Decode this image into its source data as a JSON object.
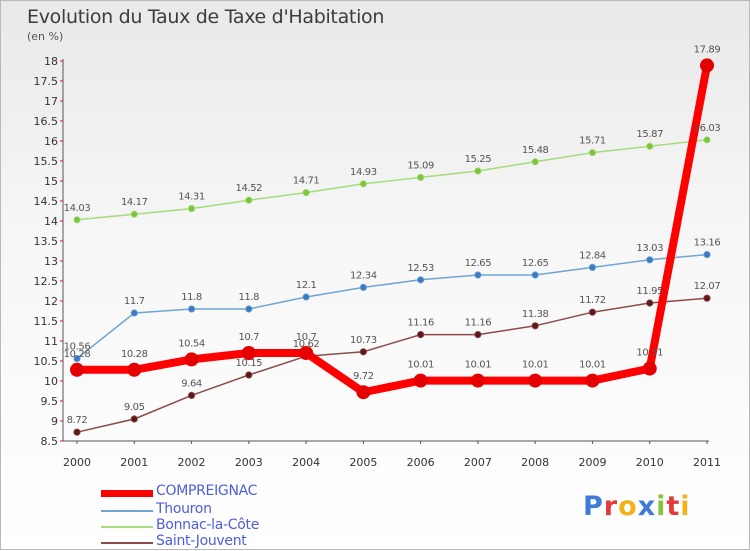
{
  "header": {
    "title": "Evolution du Taux de Taxe d'Habitation",
    "subtitle": "(en %)"
  },
  "logo": {
    "text": "Proxiti"
  },
  "chart_data": {
    "type": "line",
    "title": "Evolution du Taux de Taxe d'Habitation",
    "ylabel": "(en %)",
    "xlabel": "",
    "x": [
      "2000",
      "2001",
      "2002",
      "2003",
      "2004",
      "2005",
      "2006",
      "2007",
      "2008",
      "2009",
      "2010",
      "2011"
    ],
    "ylim": [
      8.5,
      18
    ],
    "yticks": [
      "8.5",
      "9",
      "9.5",
      "10",
      "10.5",
      "11",
      "11.5",
      "12",
      "12.5",
      "13",
      "13.5",
      "14",
      "14.5",
      "15",
      "15.5",
      "16",
      "16.5",
      "17",
      "17.5",
      "18"
    ],
    "grid": false,
    "legend_position": "bottom-left",
    "series": [
      {
        "name": "COMPREIGNAC",
        "color": "#ff0000",
        "point_color": "#e40000",
        "width": 8,
        "radius": 7,
        "values": [
          10.28,
          10.28,
          10.54,
          10.7,
          10.7,
          9.72,
          10.01,
          10.01,
          10.01,
          10.01,
          10.31,
          17.89
        ],
        "labels": [
          "10.28",
          "10.28",
          "10.54",
          "10.7",
          "10.7",
          "9.72",
          "10.01",
          "10.01",
          "10.01",
          "10.01",
          "10.31",
          "17.89"
        ]
      },
      {
        "name": "Thouron",
        "color": "#6fa5d3",
        "point_color": "#3a7cc2",
        "width": 1.5,
        "radius": 3.2,
        "values": [
          10.56,
          11.7,
          11.8,
          11.8,
          12.1,
          12.34,
          12.53,
          12.65,
          12.65,
          12.84,
          13.03,
          13.16
        ],
        "labels": [
          "10.56",
          "11.7",
          "11.8",
          "11.8",
          "12.1",
          "12.34",
          "12.53",
          "12.65",
          "12.65",
          "12.84",
          "13.03",
          "13.16"
        ]
      },
      {
        "name": "Bonnac-la-Côte",
        "color": "#a6dc7c",
        "point_color": "#7cc43a",
        "width": 1.5,
        "radius": 3.2,
        "values": [
          14.03,
          14.17,
          14.31,
          14.52,
          14.71,
          14.93,
          15.09,
          15.25,
          15.48,
          15.71,
          15.87,
          16.03
        ],
        "labels": [
          "14.03",
          "14.17",
          "14.31",
          "14.52",
          "14.71",
          "14.93",
          "15.09",
          "15.25",
          "15.48",
          "15.71",
          "15.87",
          "16.03"
        ]
      },
      {
        "name": "Saint-Jouvent",
        "color": "#8e4a4a",
        "point_color": "#5e1a1a",
        "width": 1.5,
        "radius": 3.2,
        "values": [
          8.72,
          9.05,
          9.64,
          10.15,
          10.62,
          10.73,
          11.16,
          11.16,
          11.38,
          11.72,
          11.95,
          12.07
        ],
        "labels": [
          "8.72",
          "9.05",
          "9.64",
          "10.15",
          "10.62",
          "10.73",
          "11.16",
          "11.16",
          "11.38",
          "11.72",
          "11.95",
          "12.07"
        ]
      }
    ]
  }
}
